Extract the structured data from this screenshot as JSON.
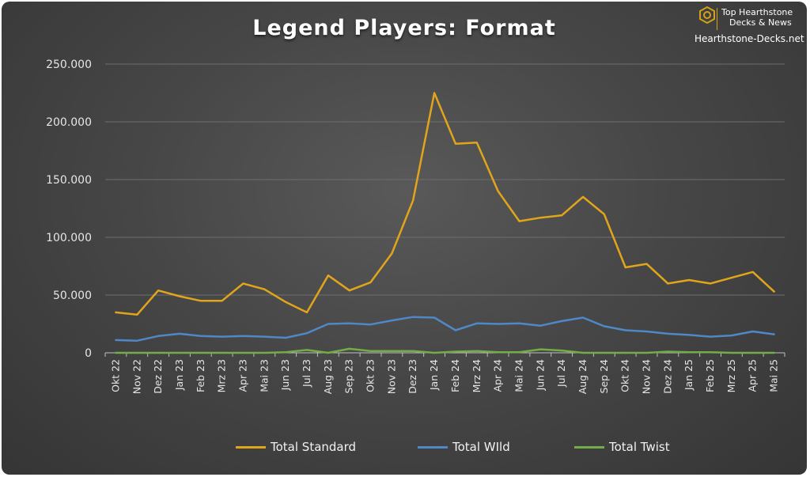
{
  "logo": {
    "line1": "Top Hearthstone",
    "line2": "Decks & News",
    "site": "Hearthstone-Decks.net"
  },
  "chart_data": {
    "type": "line",
    "title": "Legend Players: Format",
    "xlabel": "",
    "ylabel": "",
    "ylim": [
      0,
      250000
    ],
    "yticks": [
      0,
      50000,
      100000,
      150000,
      200000,
      250000
    ],
    "ytick_labels": [
      "0",
      "50.000",
      "100.000",
      "150.000",
      "200.000",
      "250.000"
    ],
    "grid": true,
    "legend_position": "bottom",
    "categories": [
      "Okt 22",
      "Nov 22",
      "Dez 22",
      "Jan 23",
      "Feb 23",
      "Mrz 23",
      "Apr 23",
      "Mai 23",
      "Jun 23",
      "Jul 23",
      "Aug 23",
      "Sep 23",
      "Okt 23",
      "Nov 23",
      "Dez 23",
      "Jan 24",
      "Feb 24",
      "Mrz 24",
      "Apr 24",
      "Mai 24",
      "Jun 24",
      "Jul 24",
      "Aug 24",
      "Sep 24",
      "Okt 24",
      "Nov 24",
      "Dez 24",
      "Jan 25",
      "Feb 25",
      "Mrz 25",
      "Apr 25",
      "Mai 25"
    ],
    "series": [
      {
        "name": "Total Standard",
        "color": "#e0a51b",
        "values": [
          35000,
          33000,
          54000,
          49000,
          45000,
          45000,
          60000,
          55000,
          44000,
          35000,
          67000,
          54000,
          61000,
          86000,
          132000,
          225000,
          181000,
          182000,
          140000,
          114000,
          117000,
          119000,
          135000,
          120000,
          74000,
          77000,
          60000,
          63000,
          60000,
          65000,
          70000,
          53000
        ]
      },
      {
        "name": "Total WIld",
        "color": "#4f88c6",
        "values": [
          11000,
          10500,
          14500,
          16500,
          14500,
          14000,
          14500,
          14000,
          13000,
          17000,
          25000,
          25500,
          24500,
          28000,
          31000,
          30500,
          19500,
          25500,
          25000,
          25500,
          23500,
          27500,
          30500,
          23000,
          19500,
          18500,
          16500,
          15500,
          14000,
          15000,
          18500,
          16000
        ]
      },
      {
        "name": "Total Twist",
        "color": "#72ad47",
        "values": [
          0,
          0,
          0,
          0,
          0,
          0,
          0,
          0,
          500,
          2500,
          0,
          3500,
          1500,
          1500,
          1500,
          0,
          1000,
          1500,
          500,
          500,
          3000,
          2000,
          0,
          0,
          0,
          0,
          1000,
          500,
          500,
          0,
          0,
          0
        ]
      }
    ]
  }
}
